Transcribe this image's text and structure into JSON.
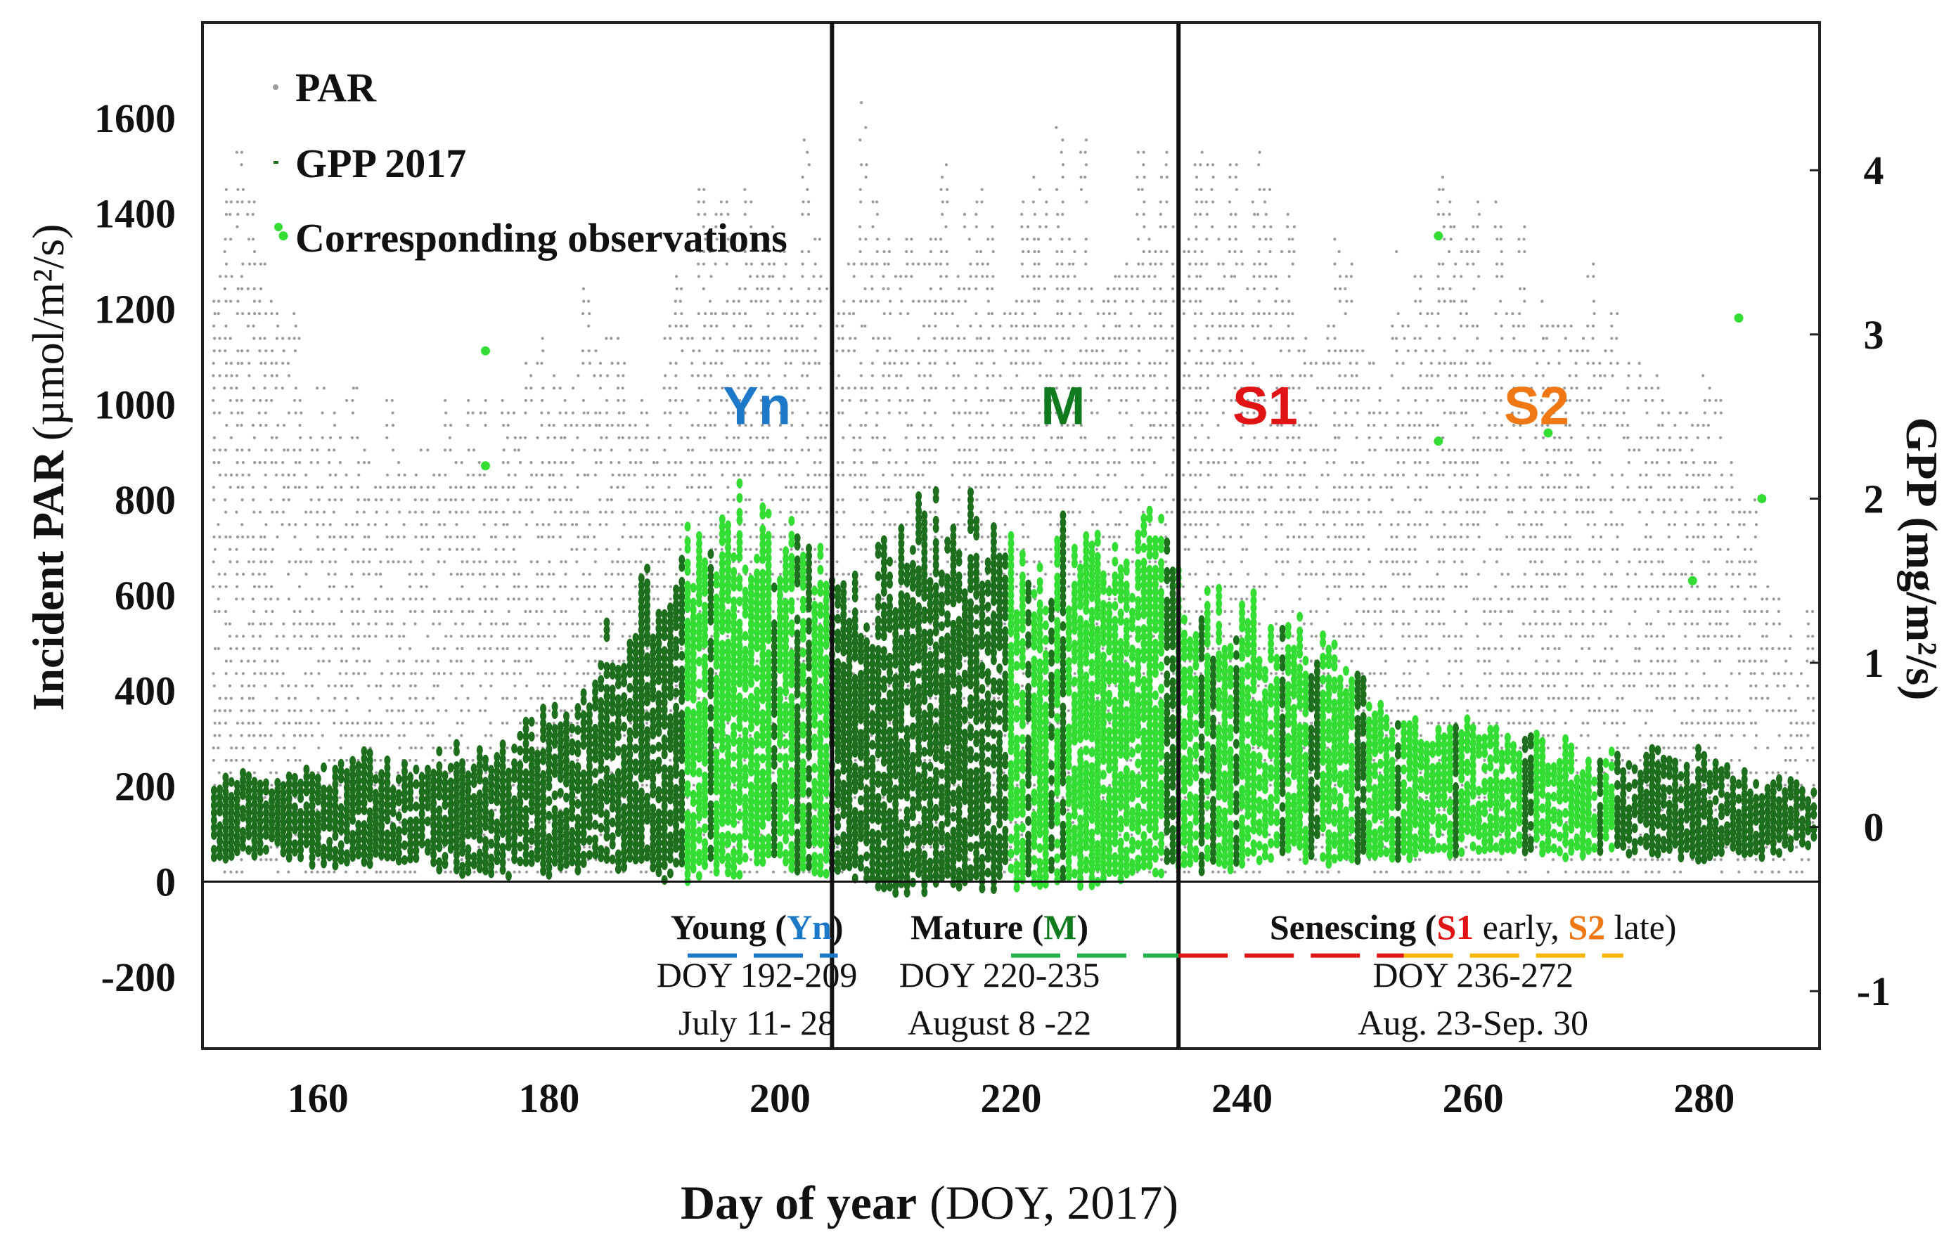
{
  "colors": {
    "par": "#9a9a9a",
    "gpp": "#1d6e1d",
    "obs": "#33dd33",
    "young": "#1e78c8",
    "mature": "#0f7a1e",
    "s1": "#e01414",
    "s2": "#f07814",
    "mature_line": "#22b24c",
    "s2_line": "#f7b500"
  },
  "chart_data": {
    "type": "scatter",
    "title": "",
    "xlabel_main": "Day of year",
    "xlabel_note": "(DOY, 2017)",
    "ylabel_left_main": "Incident PAR",
    "ylabel_left_unit": "(µmol/m²/s)",
    "ylabel_right_main": "GPP",
    "ylabel_right_unit": "(mg/m²/s)",
    "xlim": [
      150,
      290
    ],
    "ylim_left": [
      -350,
      1800
    ],
    "ylim_right": [
      -1.35,
      4.9
    ],
    "x_ticks": [
      "160",
      "180",
      "200",
      "220",
      "240",
      "260",
      "280"
    ],
    "x_tick_values": [
      160,
      180,
      200,
      220,
      240,
      260,
      280
    ],
    "y_left_ticks": [
      "1600",
      "1400",
      "1200",
      "1000",
      "800",
      "600",
      "400",
      "200",
      "0",
      "-200"
    ],
    "y_left_tick_values": [
      1600,
      1400,
      1200,
      1000,
      800,
      600,
      400,
      200,
      0,
      -200
    ],
    "y_right_ticks": [
      "4",
      "3",
      "2",
      "1",
      "0",
      "-1"
    ],
    "y_right_tick_values": [
      4,
      3,
      2,
      1,
      0,
      -1
    ],
    "zero_line": 0,
    "stage_boundaries_doy": [
      204.5,
      234.5
    ],
    "legend": [
      {
        "label": "PAR",
        "marker": "par"
      },
      {
        "label": "GPP 2017",
        "marker": "gpp"
      },
      {
        "label": "Corresponding observations",
        "marker": "obs"
      }
    ],
    "stage_labels": [
      {
        "text": "Yn",
        "doy": 198,
        "value": 1000,
        "color": "young"
      },
      {
        "text": "M",
        "doy": 224.5,
        "value": 1000,
        "color": "mature"
      },
      {
        "text": "S1",
        "doy": 242,
        "value": 1000,
        "color": "s1"
      },
      {
        "text": "S2",
        "doy": 265.5,
        "value": 1000,
        "color": "s2"
      }
    ],
    "stage_ranges": [
      {
        "color": "young",
        "start": 192,
        "end": 205
      },
      {
        "color": "mature_line",
        "start": 220,
        "end": 234.5
      },
      {
        "color": "s1",
        "start": 234.5,
        "end": 254
      },
      {
        "color": "s2_line",
        "start": 254,
        "end": 273
      }
    ],
    "periods": [
      {
        "line1_a": "Young (",
        "line1_code": "Yn",
        "line1_b": ")",
        "code_color": "young",
        "line2": "DOY 192-209",
        "line3": "July 11- 28",
        "doy_center": 198
      },
      {
        "line1_a": "Mature (",
        "line1_code": "M",
        "line1_b": ")",
        "code_color": "mature",
        "line2": "DOY 220-235",
        "line3": "August  8 -22",
        "doy_center": 219
      },
      {
        "line1_a": "Senescing (",
        "line1_s1": "S1",
        "line1_mid": " early, ",
        "line1_s2": "S2",
        "line1_b": " late)",
        "line2": "DOY 236-272",
        "line3": "Aug. 23-Sep. 30",
        "doy_center": 260
      }
    ],
    "par_daily_max": {
      "doy": [
        152,
        156,
        160,
        164,
        168,
        172,
        176,
        180,
        184,
        188,
        192,
        196,
        200,
        204,
        208,
        212,
        216,
        220,
        224,
        228,
        232,
        236,
        240,
        244,
        248,
        252,
        256,
        260,
        264,
        268,
        272,
        276,
        280,
        284,
        288
      ],
      "values": [
        1580,
        1300,
        1150,
        1100,
        1050,
        1000,
        1100,
        1250,
        1300,
        1150,
        1450,
        1400,
        1500,
        1550,
        1650,
        1650,
        1600,
        1500,
        1650,
        1500,
        1550,
        1600,
        1550,
        1450,
        1400,
        1300,
        1500,
        1450,
        1400,
        1300,
        1250,
        1150,
        1100,
        800,
        600
      ]
    },
    "gpp_daily_envelope": {
      "doy": [
        152,
        156,
        160,
        164,
        168,
        172,
        176,
        180,
        184,
        188,
        192,
        196,
        200,
        204,
        208,
        212,
        216,
        220,
        224,
        228,
        232,
        236,
        240,
        244,
        248,
        252,
        256,
        260,
        264,
        268,
        272,
        276,
        280,
        284,
        288
      ],
      "max_mg_m2_s": [
        0.35,
        0.35,
        0.38,
        0.45,
        0.4,
        0.5,
        0.55,
        0.75,
        1.1,
        1.6,
        1.9,
        2.1,
        1.9,
        1.8,
        1.6,
        2.1,
        2.0,
        1.8,
        1.85,
        1.9,
        1.9,
        1.6,
        1.4,
        1.3,
        1.2,
        0.85,
        0.7,
        0.65,
        0.6,
        0.55,
        0.45,
        0.5,
        0.45,
        0.35,
        0.3
      ],
      "min_mg_m2_s": [
        -0.2,
        -0.2,
        -0.25,
        -0.25,
        -0.2,
        -0.3,
        -0.3,
        -0.3,
        -0.25,
        -0.3,
        -0.35,
        -0.3,
        -0.25,
        -0.35,
        -0.4,
        -0.45,
        -0.4,
        -0.4,
        -0.4,
        -0.35,
        -0.3,
        -0.3,
        -0.25,
        -0.2,
        -0.25,
        -0.2,
        -0.2,
        -0.15,
        -0.15,
        -0.2,
        -0.15,
        -0.2,
        -0.2,
        -0.2,
        -0.15
      ]
    },
    "observation_range_doy": [
      192,
      272
    ],
    "observation_outliers": [
      {
        "doy": 157,
        "gpp": 3.6
      },
      {
        "doy": 174.5,
        "gpp": 2.9
      },
      {
        "doy": 174.5,
        "gpp": 2.2
      },
      {
        "doy": 257,
        "gpp": 3.6
      },
      {
        "doy": 266.5,
        "gpp": 2.4
      },
      {
        "doy": 257,
        "gpp": 2.35
      },
      {
        "doy": 283,
        "gpp": 3.1
      },
      {
        "doy": 285,
        "gpp": 2.0
      },
      {
        "doy": 279,
        "gpp": 1.5
      }
    ]
  }
}
